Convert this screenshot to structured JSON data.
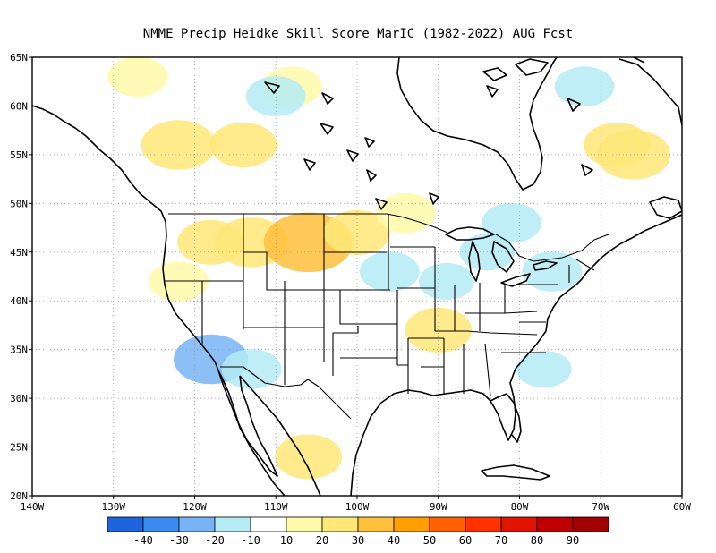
{
  "title": "NMME Precip Heidke Skill Score MarIC (1982-2022) AUG Fcst",
  "map": {
    "lon_range": [
      -140,
      -60
    ],
    "lat_range": [
      20,
      65
    ],
    "lon_ticks": [
      {
        "lon": -140,
        "label": "140W"
      },
      {
        "lon": -130,
        "label": "130W"
      },
      {
        "lon": -120,
        "label": "120W"
      },
      {
        "lon": -110,
        "label": "110W"
      },
      {
        "lon": -100,
        "label": "100W"
      },
      {
        "lon": -90,
        "label": "90W"
      },
      {
        "lon": -80,
        "label": "80W"
      },
      {
        "lon": -70,
        "label": "70W"
      },
      {
        "lon": -60,
        "label": "60W"
      }
    ],
    "lat_ticks": [
      {
        "lat": 65,
        "label": "65N"
      },
      {
        "lat": 60,
        "label": "60N"
      },
      {
        "lat": 55,
        "label": "55N"
      },
      {
        "lat": 50,
        "label": "50N"
      },
      {
        "lat": 45,
        "label": "45N"
      },
      {
        "lat": 40,
        "label": "40N"
      },
      {
        "lat": 35,
        "label": "35N"
      },
      {
        "lat": 30,
        "label": "30N"
      },
      {
        "lat": 25,
        "label": "25N"
      },
      {
        "lat": 20,
        "label": "20N"
      }
    ],
    "grid": true
  },
  "colorbar": {
    "colors": [
      "#1e64dc",
      "#3c8cf0",
      "#78b4f5",
      "#b4ebf5",
      "#ffffff",
      "#fffaaa",
      "#ffe778",
      "#ffc03c",
      "#ffa000",
      "#ff6000",
      "#ff3200",
      "#e11400",
      "#c00000",
      "#a50000"
    ],
    "labels": [
      "-40",
      "-30",
      "-20",
      "-10",
      "10",
      "20",
      "30",
      "40",
      "50",
      "60",
      "70",
      "80",
      "90"
    ]
  },
  "chart_data": {
    "type": "heatmap",
    "title": "NMME Precip Heidke Skill Score MarIC (1982-2022) AUG Fcst",
    "xlabel": "",
    "ylabel": "",
    "xlim": [
      -140,
      -60
    ],
    "ylim": [
      20,
      65
    ],
    "levels": [
      -40,
      -30,
      -20,
      -10,
      10,
      20,
      30,
      40,
      50,
      60,
      70,
      80,
      90
    ],
    "patches": [
      {
        "lon": -122,
        "lat": 56,
        "value": 25
      },
      {
        "lon": -114,
        "lat": 56,
        "value": 20
      },
      {
        "lon": -113,
        "lat": 46,
        "value": 25
      },
      {
        "lon": -106,
        "lat": 46,
        "value": 35
      },
      {
        "lon": -118,
        "lat": 46,
        "value": 20
      },
      {
        "lon": -100,
        "lat": 47,
        "value": 20
      },
      {
        "lon": -122,
        "lat": 42,
        "value": 15
      },
      {
        "lon": -94,
        "lat": 49,
        "value": 15
      },
      {
        "lon": -68,
        "lat": 56,
        "value": 20
      },
      {
        "lon": -66,
        "lat": 55,
        "value": 25
      },
      {
        "lon": -90,
        "lat": 37,
        "value": 20
      },
      {
        "lon": -106,
        "lat": 24,
        "value": 20
      },
      {
        "lon": -127,
        "lat": 63,
        "value": 15
      },
      {
        "lon": -108,
        "lat": 62,
        "value": 15
      },
      {
        "lon": -72,
        "lat": 62,
        "value": -15
      },
      {
        "lon": -110,
        "lat": 61,
        "value": -15
      },
      {
        "lon": -118,
        "lat": 34,
        "value": -25
      },
      {
        "lon": -113,
        "lat": 33,
        "value": -15
      },
      {
        "lon": -96,
        "lat": 43,
        "value": -15
      },
      {
        "lon": -76,
        "lat": 43,
        "value": -15
      },
      {
        "lon": -81,
        "lat": 48,
        "value": -15
      },
      {
        "lon": -84,
        "lat": 45,
        "value": -12
      },
      {
        "lon": -89,
        "lat": 42,
        "value": -12
      },
      {
        "lon": -77,
        "lat": 33,
        "value": -12
      }
    ]
  }
}
